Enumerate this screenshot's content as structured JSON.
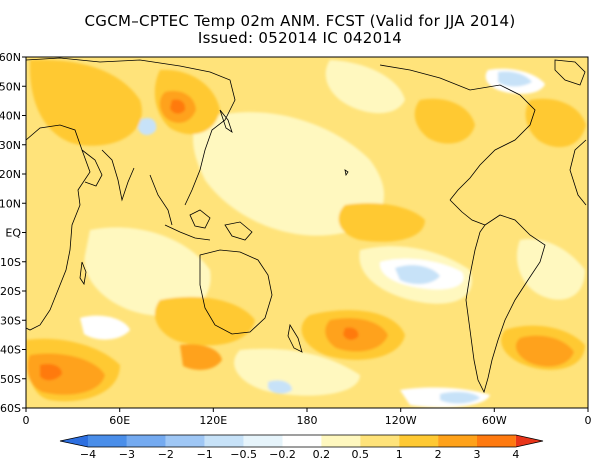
{
  "title": {
    "line1": "CGCM–CPTEC Temp 02m ANM. FCST  (Valid for JJA 2014)",
    "line2": "Issued:  052014 IC 042014"
  },
  "axes": {
    "lat_labels": [
      "60N",
      "50N",
      "40N",
      "30N",
      "20N",
      "10N",
      "EQ",
      "10S",
      "20S",
      "30S",
      "40S",
      "50S",
      "60S"
    ],
    "lon_labels": [
      "0",
      "60E",
      "120E",
      "180",
      "120W",
      "60W",
      "0"
    ]
  },
  "colorbar": {
    "ticks": [
      "−4",
      "−3",
      "−2",
      "−1",
      "−0.5",
      "−0.2",
      "0.2",
      "0.5",
      "1",
      "2",
      "3",
      "4"
    ],
    "colors": [
      "#2d6fe0",
      "#4a8ee9",
      "#74aaf0",
      "#9fc7f5",
      "#c7e2f8",
      "#e6f4fb",
      "#ffffff",
      "#fff8bf",
      "#ffe37a",
      "#ffc933",
      "#ffa21a",
      "#ff7a10",
      "#e8351a"
    ]
  },
  "palette": {
    "base": "#ffe37a",
    "pale": "#fff8bf",
    "white": "#ffffff",
    "orange": "#ffc933",
    "dark_orange": "#ffa21a",
    "red_orange": "#ff7a10",
    "light_blue": "#c7e2f8",
    "lighter_blue": "#e6f4fb",
    "land_outline": "#000000"
  }
}
